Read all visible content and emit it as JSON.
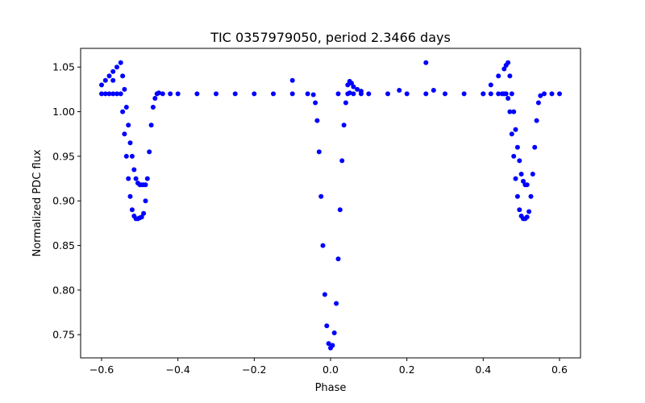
{
  "chart_data": {
    "type": "scatter",
    "title": "TIC 0357979050, period 2.3466 days",
    "xlabel": "Phase",
    "ylabel": "Normalized PDC flux",
    "xlim": [
      -0.655,
      0.655
    ],
    "ylim": [
      0.724,
      1.071
    ],
    "x_ticks": [
      -0.6,
      -0.4,
      -0.2,
      0.0,
      0.2,
      0.4,
      0.6
    ],
    "x_tick_labels": [
      "−0.6",
      "−0.4",
      "−0.2",
      "0.0",
      "0.2",
      "0.4",
      "0.6"
    ],
    "y_ticks": [
      0.75,
      0.8,
      0.85,
      0.9,
      0.95,
      1.0,
      1.05
    ],
    "y_tick_labels": [
      "0.75",
      "0.80",
      "0.85",
      "0.90",
      "0.95",
      "1.00",
      "1.05"
    ],
    "grid": false,
    "marker_color": "#0000ff",
    "series": [
      {
        "x": [
          -0.6,
          -0.59,
          -0.58,
          -0.57,
          -0.56,
          -0.55,
          -0.545,
          -0.54,
          -0.535,
          -0.53,
          -0.525,
          -0.52,
          -0.515,
          -0.51,
          -0.505,
          -0.5,
          -0.495,
          -0.49,
          -0.485,
          -0.48,
          -0.475,
          -0.47,
          -0.465,
          -0.46,
          -0.455,
          -0.45,
          -0.44,
          -0.42,
          -0.4,
          -0.35,
          -0.3,
          -0.25,
          -0.2,
          -0.15,
          -0.1,
          -0.06,
          -0.045,
          -0.04,
          -0.035,
          -0.03,
          -0.025,
          -0.02,
          -0.015,
          -0.01,
          -0.005,
          0.0,
          0.005,
          0.01,
          0.015,
          0.02,
          0.025,
          0.03,
          0.035,
          0.04,
          0.045,
          0.05,
          0.06,
          0.08,
          0.1,
          0.15,
          0.2,
          0.25,
          0.3,
          0.35,
          0.4,
          0.42,
          0.44,
          0.45,
          0.455,
          0.46,
          0.465,
          0.47,
          0.475,
          0.48,
          0.485,
          0.49,
          0.495,
          0.5,
          0.505,
          0.51,
          0.515,
          0.52,
          0.525,
          0.53,
          0.535,
          0.54,
          0.545,
          0.55,
          0.56,
          0.58,
          0.6
        ],
        "y": [
          1.02,
          1.02,
          1.02,
          1.02,
          1.02,
          1.02,
          1.0,
          0.975,
          0.95,
          0.925,
          0.905,
          0.89,
          0.883,
          0.88,
          0.88,
          0.881,
          0.882,
          0.886,
          0.9,
          0.925,
          0.955,
          0.985,
          1.005,
          1.015,
          1.02,
          1.021,
          1.02,
          1.02,
          1.02,
          1.02,
          1.02,
          1.02,
          1.02,
          1.02,
          1.02,
          1.02,
          1.019,
          1.01,
          0.99,
          0.955,
          0.905,
          0.85,
          0.795,
          0.76,
          0.74,
          0.735,
          0.738,
          0.752,
          0.785,
          0.835,
          0.89,
          0.945,
          0.985,
          1.01,
          1.02,
          1.021,
          1.02,
          1.02,
          1.02,
          1.02,
          1.02,
          1.02,
          1.02,
          1.02,
          1.02,
          1.02,
          1.02,
          1.02,
          1.02,
          1.02,
          1.015,
          1.0,
          0.975,
          0.95,
          0.925,
          0.905,
          0.89,
          0.883,
          0.88,
          0.88,
          0.882,
          0.888,
          0.905,
          0.93,
          0.96,
          0.99,
          1.01,
          1.018,
          1.02,
          1.02,
          1.02
        ]
      },
      {
        "x": [
          -0.6,
          -0.59,
          -0.58,
          -0.57,
          -0.56,
          -0.55,
          -0.545,
          -0.54,
          -0.535,
          -0.53,
          -0.525,
          -0.52,
          -0.515,
          -0.51,
          -0.505,
          -0.5,
          -0.495,
          -0.49,
          -0.485
        ],
        "y": [
          1.03,
          1.035,
          1.04,
          1.045,
          1.05,
          1.055,
          1.04,
          1.025,
          1.005,
          0.985,
          0.965,
          0.95,
          0.935,
          0.925,
          0.92,
          0.918,
          0.918,
          0.918,
          0.918
        ]
      },
      {
        "x": [
          0.4,
          0.42,
          0.44,
          0.455,
          0.46,
          0.465,
          0.47,
          0.475,
          0.48,
          0.485,
          0.49,
          0.495,
          0.5,
          0.505,
          0.51,
          0.515
        ],
        "y": [
          1.02,
          1.03,
          1.04,
          1.048,
          1.052,
          1.055,
          1.04,
          1.02,
          1.0,
          0.98,
          0.96,
          0.945,
          0.93,
          0.922,
          0.918,
          0.918
        ]
      },
      {
        "x": [
          -0.57,
          -0.1,
          0.02,
          0.045,
          0.05,
          0.055,
          0.06,
          0.07,
          0.08,
          0.18,
          0.25,
          0.27
        ],
        "y": [
          1.035,
          1.035,
          1.02,
          1.03,
          1.034,
          1.032,
          1.028,
          1.025,
          1.023,
          1.024,
          1.055,
          1.024
        ]
      }
    ]
  }
}
